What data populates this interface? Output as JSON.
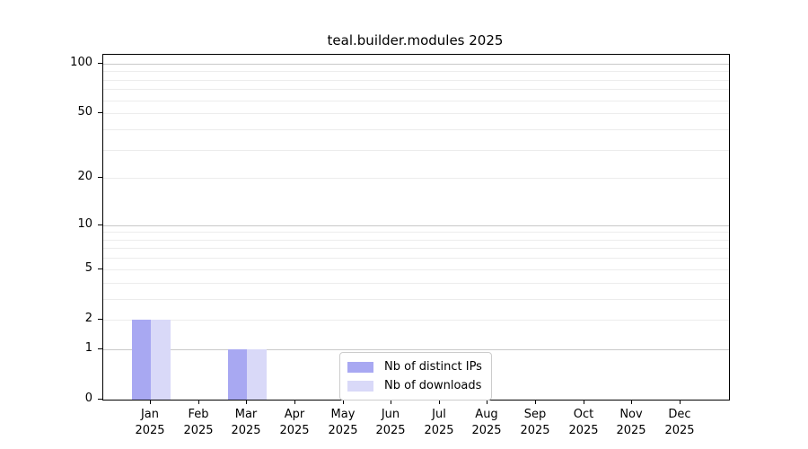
{
  "title": "teal.builder.modules 2025",
  "chart_data": {
    "type": "bar",
    "title": "teal.builder.modules 2025",
    "categories": [
      "Jan",
      "Feb",
      "Mar",
      "Apr",
      "May",
      "Jun",
      "Jul",
      "Aug",
      "Sep",
      "Oct",
      "Nov",
      "Dec"
    ],
    "category_year": "2025",
    "series": [
      {
        "name": "Nb of distinct IPs",
        "color": "#a8a8f2",
        "values": [
          2,
          0,
          1,
          0,
          0,
          0,
          0,
          0,
          0,
          0,
          0,
          0
        ]
      },
      {
        "name": "Nb of downloads",
        "color": "#d9d9f8",
        "values": [
          2,
          0,
          1,
          0,
          0,
          0,
          0,
          0,
          0,
          0,
          0,
          0
        ]
      }
    ],
    "y_ticks": [
      0,
      1,
      2,
      5,
      10,
      20,
      50,
      100
    ],
    "y_scale": "log10(1+value)",
    "ylim": [
      0,
      113
    ],
    "xlabel": "",
    "ylabel": "",
    "grid": true,
    "legend_position": "bottom-center"
  },
  "colors": {
    "axis": "#000000",
    "grid_major": "#c9c9c9",
    "grid_minor": "#ececec",
    "legend_border": "#cccccc",
    "background": "#ffffff",
    "text": "#000000"
  }
}
